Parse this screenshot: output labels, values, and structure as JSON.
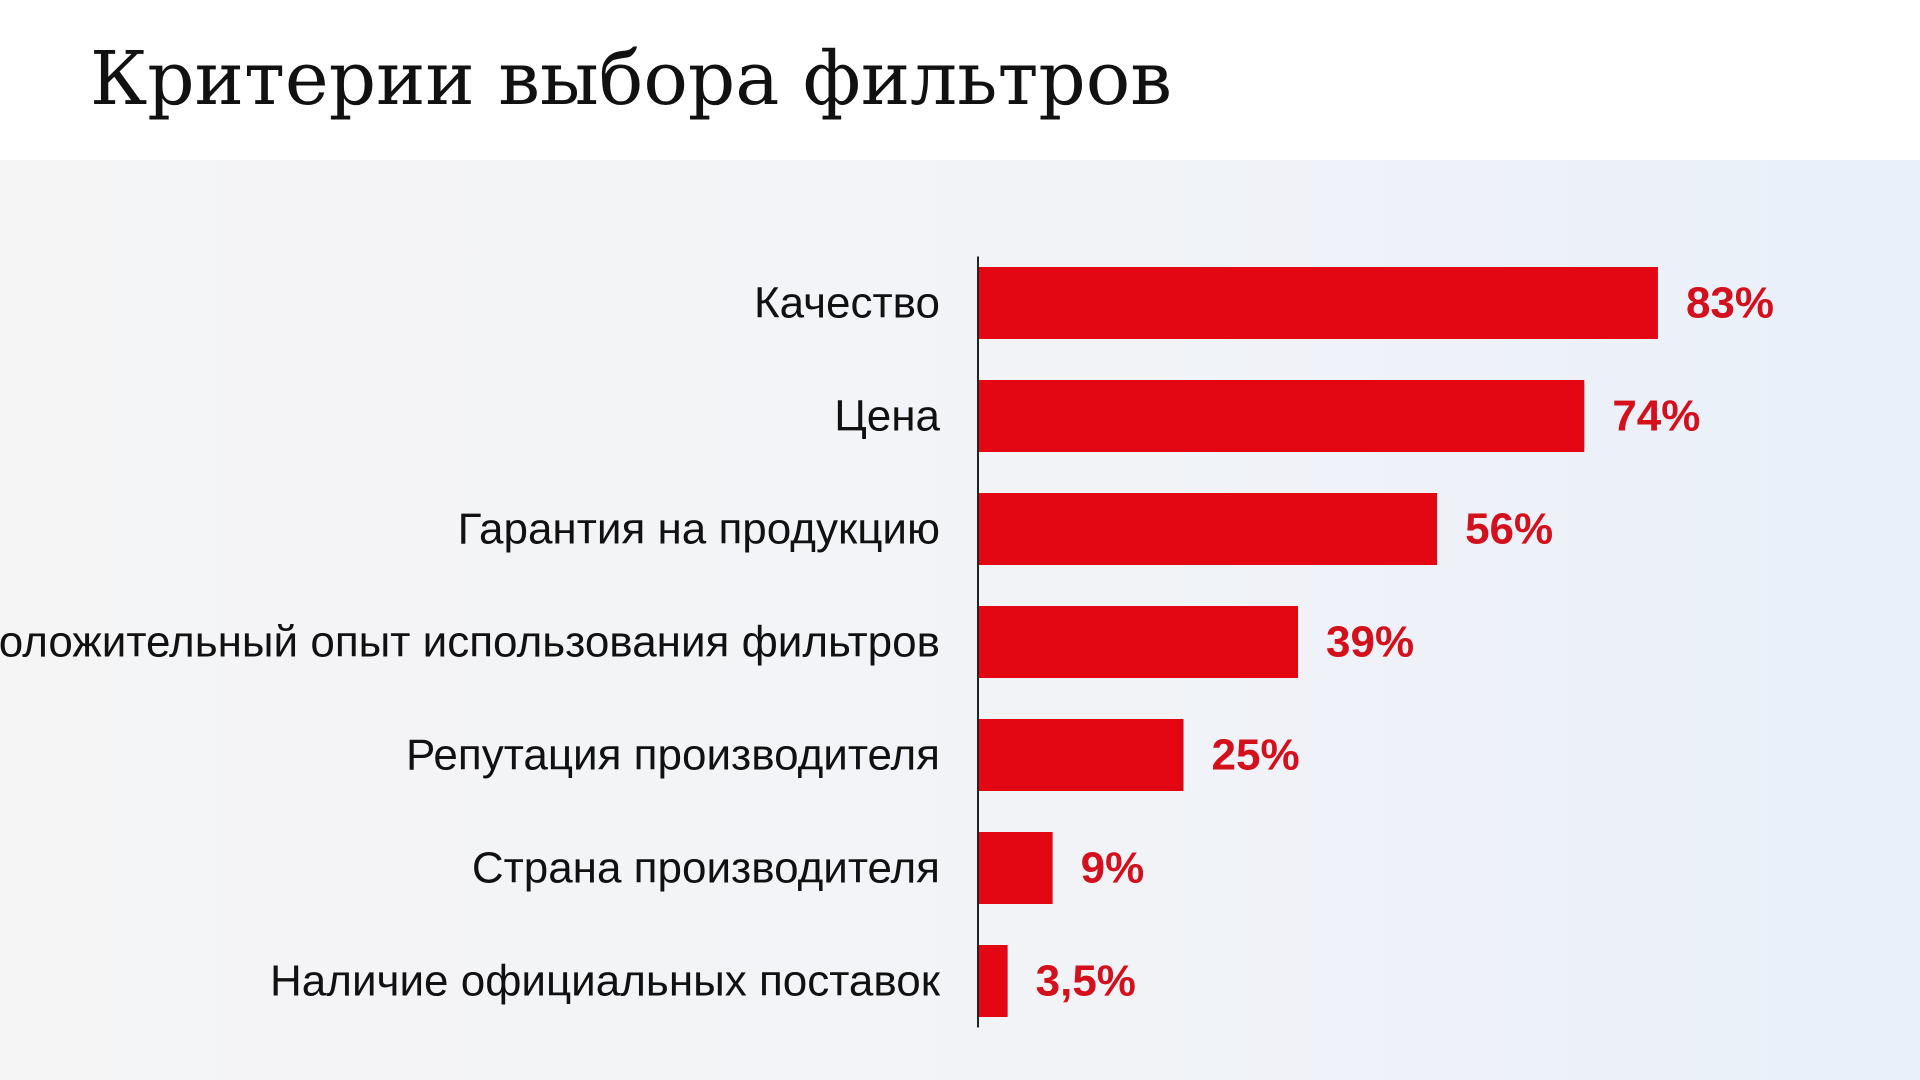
{
  "page": {
    "title": "Критерии выбора фильтров"
  },
  "colors": {
    "bar": "#e30613",
    "value_label": "#d4101c",
    "axis": "#222222"
  },
  "chart_data": {
    "type": "bar",
    "orientation": "horizontal",
    "title": "",
    "xlabel": "",
    "ylabel": "",
    "xlim": [
      0,
      100
    ],
    "grid": false,
    "legend": "none",
    "categories": [
      "Качество",
      "Цена",
      "Гарантия на продукцию",
      "Положительный опыт использования фильтров",
      "Репутация производителя",
      "Страна производителя",
      "Наличие официальных поставок"
    ],
    "values": [
      83,
      74,
      56,
      39,
      25,
      9,
      3.5
    ],
    "value_labels": [
      "83%",
      "74%",
      "56%",
      "39%",
      "25%",
      "9%",
      "3,5%"
    ]
  }
}
